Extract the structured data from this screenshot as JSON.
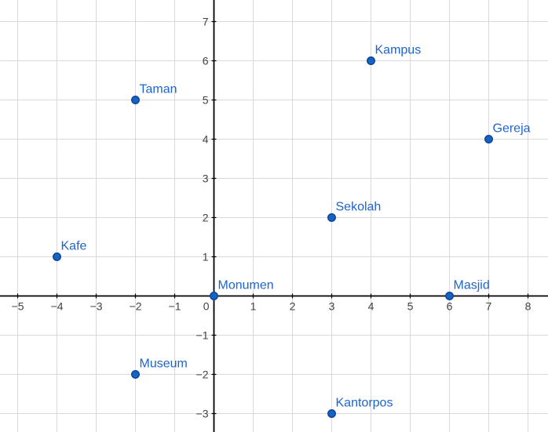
{
  "chart_data": {
    "type": "scatter",
    "title": "",
    "xlabel": "",
    "ylabel": "",
    "points": [
      {
        "label": "Kampus",
        "x": 4,
        "y": 6
      },
      {
        "label": "Taman",
        "x": -2,
        "y": 5
      },
      {
        "label": "Gereja",
        "x": 7,
        "y": 4
      },
      {
        "label": "Sekolah",
        "x": 3,
        "y": 2
      },
      {
        "label": "Kafe",
        "x": -4,
        "y": 1
      },
      {
        "label": "Monumen",
        "x": 0,
        "y": 0
      },
      {
        "label": "Masjid",
        "x": 6,
        "y": 0
      },
      {
        "label": "Museum",
        "x": -2,
        "y": -2
      },
      {
        "label": "Kantorpos",
        "x": 3,
        "y": -3
      }
    ],
    "x_ticks": [
      -5,
      -4,
      -3,
      -2,
      -1,
      1,
      2,
      3,
      4,
      5,
      6,
      7,
      8
    ],
    "y_ticks": [
      -3,
      -2,
      -1,
      1,
      2,
      3,
      4,
      5,
      6,
      7
    ],
    "origin_label": "0",
    "x_range": [
      -5.45,
      8.51
    ],
    "y_range": [
      -3.47,
      7.55
    ],
    "grid": true,
    "legend": false,
    "colors": {
      "background": "#ffffff",
      "grid": "#d9d9d9",
      "axis": "#000000",
      "tick_label": "#424242",
      "point_fill": "#1565c0",
      "point_stroke": "#0d47a1",
      "point_label": "#1e64cd"
    }
  }
}
